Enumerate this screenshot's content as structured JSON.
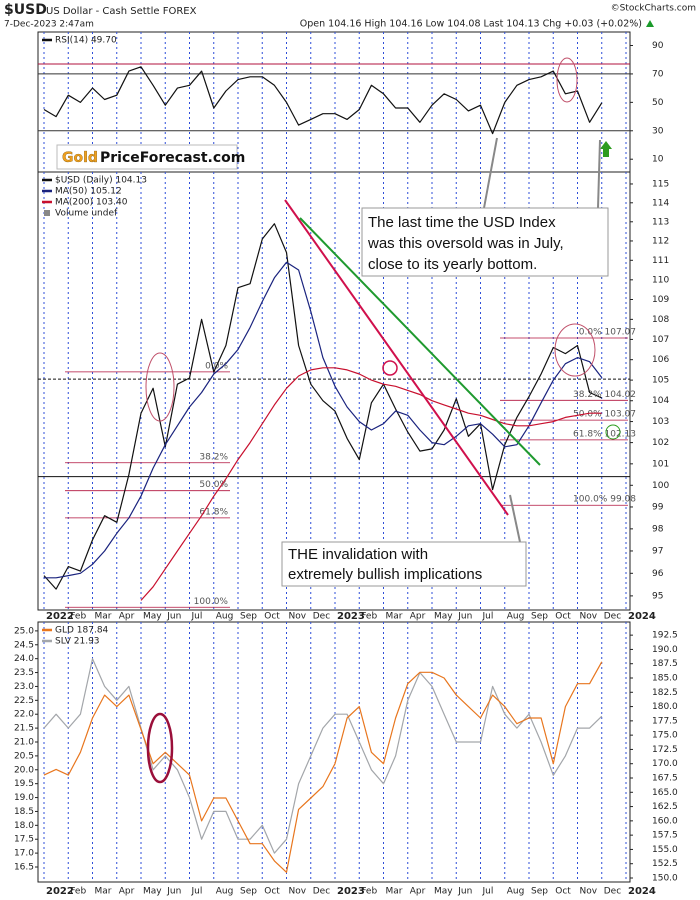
{
  "header": {
    "symbol": "$USD",
    "name": "US Dollar - Cash Settle FOREX",
    "date": "7-Dec-2023 2:47am",
    "quote": "Open 104.16 High 104.16 Low 104.08 Last 104.13 Chg +0.03 (+0.02%)",
    "source": "©StockCharts.com"
  },
  "logo": {
    "gold": "Gold",
    "rest": "PriceForecast.com"
  },
  "annotations": {
    "oversold": [
      "The last time the USD Index",
      "was this oversold was in July,",
      "close to its yearly bottom."
    ],
    "invalidation": [
      "THE invalidation with",
      "extremely bullish implications"
    ]
  },
  "chart_data": [
    {
      "type": "line",
      "y_axis": "right",
      "series": [
        {
          "name": "RSI(14) 49.70",
          "color": "#111111",
          "values": [
            45,
            40,
            55,
            50,
            60,
            52,
            55,
            72,
            75,
            62,
            48,
            60,
            62,
            72,
            46,
            58,
            66,
            68,
            68,
            62,
            50,
            34,
            38,
            42,
            42,
            38,
            45,
            62,
            56,
            46,
            46,
            36,
            48,
            56,
            52,
            44,
            48,
            28,
            50,
            62,
            66,
            68,
            72,
            56,
            58,
            36,
            49.7,
            null,
            null
          ]
        }
      ],
      "ylim": [
        1,
        99.5
      ],
      "yticks": [
        10,
        30,
        50,
        70,
        90
      ],
      "hlines": [
        {
          "value": 77,
          "color": "#b0103c",
          "dash": false
        },
        {
          "value": 70,
          "color": "#333333",
          "dash": false
        },
        {
          "value": 30,
          "color": "#333333",
          "dash": false
        }
      ]
    },
    {
      "type": "line",
      "log": true,
      "y_axis": "right",
      "categories": [
        "2022",
        null,
        "Feb",
        null,
        "Mar",
        null,
        "Apr",
        null,
        "May",
        null,
        "Jun",
        null,
        "Jul",
        null,
        "Aug",
        null,
        "Sep",
        null,
        "Oct",
        null,
        "Nov",
        null,
        "Dec",
        null,
        "2023",
        null,
        "Feb",
        null,
        "Mar",
        null,
        "Apr",
        null,
        "May",
        null,
        "Jun",
        null,
        "Jul",
        null,
        "Aug",
        null,
        "Sep",
        null,
        "Oct",
        null,
        "Nov",
        null,
        "Dec",
        null,
        "2024"
      ],
      "series": [
        {
          "name": "$USD (Daily) 104.13",
          "color": "#111111",
          "values": [
            95.9,
            95.3,
            96.3,
            96.1,
            97.5,
            98.6,
            98.3,
            100.5,
            103.4,
            104.6,
            101.8,
            104.8,
            105.1,
            108.0,
            105.4,
            106.7,
            109.6,
            109.8,
            112.1,
            112.9,
            111.4,
            106.7,
            104.8,
            104.0,
            103.5,
            102.2,
            101.2,
            103.9,
            104.8,
            103.6,
            102.5,
            101.6,
            101.7,
            102.6,
            104.1,
            102.3,
            102.9,
            99.8,
            101.9,
            103.2,
            104.2,
            105.3,
            106.6,
            106.3,
            106.7,
            104.4,
            104.13,
            null,
            null
          ]
        },
        {
          "name": "MA(50) 105.12",
          "color": "#1a237e",
          "values": [
            95.8,
            95.8,
            95.9,
            96.0,
            96.4,
            97.0,
            97.8,
            98.5,
            99.5,
            100.8,
            101.9,
            102.8,
            103.7,
            104.4,
            105.3,
            105.8,
            106.5,
            107.6,
            108.9,
            110.1,
            110.9,
            110.5,
            108.4,
            106.1,
            104.7,
            103.7,
            103.0,
            102.6,
            102.9,
            103.5,
            103.3,
            102.6,
            102.0,
            101.9,
            102.3,
            102.8,
            102.9,
            102.4,
            101.8,
            101.9,
            102.8,
            103.9,
            105.0,
            105.8,
            106.1,
            105.9,
            105.12,
            null,
            null
          ]
        },
        {
          "name": "MA(200) 103.40",
          "color": "#c8102e",
          "values": [
            null,
            null,
            null,
            null,
            null,
            null,
            null,
            null,
            94.8,
            95.4,
            96.2,
            97.0,
            97.8,
            98.6,
            99.5,
            100.3,
            101.2,
            102.0,
            102.9,
            103.8,
            104.6,
            105.2,
            105.5,
            105.6,
            105.6,
            105.5,
            105.3,
            105.0,
            104.8,
            104.7,
            104.5,
            104.3,
            104.0,
            103.8,
            103.6,
            103.4,
            103.3,
            103.1,
            102.9,
            102.8,
            102.8,
            102.9,
            103.0,
            103.2,
            103.3,
            103.4,
            103.4,
            null,
            null
          ]
        }
      ],
      "volume_label": "Volume undef",
      "ylim": [
        94.38,
        115.64
      ],
      "yticks": [
        95,
        96,
        97,
        98,
        99,
        100,
        101,
        102,
        103,
        104,
        105,
        106,
        107,
        108,
        109,
        110,
        111,
        112,
        113,
        114,
        115
      ],
      "hlines": [
        {
          "value": 100.4,
          "color": "#111111",
          "dash": false
        },
        {
          "value": 105.05,
          "color": "#111111",
          "dash": true
        }
      ],
      "fib_left": [
        {
          "value": 105.4,
          "label": "0.0%"
        },
        {
          "value": 101.05,
          "label": "38.2%"
        },
        {
          "value": 99.75,
          "label": "50.0%"
        },
        {
          "value": 98.5,
          "label": "61.8%"
        },
        {
          "value": 94.5,
          "label": "100.0%"
        }
      ],
      "fib_right": [
        {
          "value": 107.07,
          "label": "0.0% 107.07"
        },
        {
          "value": 104.02,
          "label": "38.2% 104.02"
        },
        {
          "value": 103.07,
          "label": "50.0% 103.07"
        },
        {
          "value": 102.13,
          "label": "61.8% 102.13"
        },
        {
          "value": 99.08,
          "label": "100.0% 99.08"
        }
      ]
    },
    {
      "type": "line",
      "y_axis": "left",
      "categories": [
        "2022",
        null,
        "Feb",
        null,
        "Mar",
        null,
        "Apr",
        null,
        "May",
        null,
        "Jun",
        null,
        "Jul",
        null,
        "Aug",
        null,
        "Sep",
        null,
        "Oct",
        null,
        "Nov",
        null,
        "Dec",
        null,
        "2023",
        null,
        "Feb",
        null,
        "Mar",
        null,
        "Apr",
        null,
        "May",
        null,
        "Jun",
        null,
        "Jul",
        null,
        "Aug",
        null,
        "Sep",
        null,
        "Oct",
        null,
        "Nov",
        null,
        "Dec",
        null,
        "2024"
      ],
      "series": [
        {
          "name": "GLD 187.84",
          "color": "#e8761e",
          "axis": "y2",
          "values": [
            168,
            169,
            168,
            172,
            178,
            182,
            180,
            182,
            176,
            170,
            172,
            170,
            168,
            160,
            164,
            164,
            160,
            156,
            156,
            153,
            151,
            162,
            164,
            166,
            170,
            178,
            180,
            172,
            170,
            178,
            184,
            186,
            186,
            185,
            182,
            180,
            178,
            182,
            180,
            177,
            178,
            178,
            170,
            180,
            184,
            184,
            187.84,
            null,
            null
          ]
        },
        {
          "name": "SLV 21.93",
          "color": "#a3a6aa",
          "values": [
            21.5,
            22.0,
            21.5,
            22.0,
            24.0,
            23.0,
            22.5,
            23.0,
            21.5,
            20.0,
            20.5,
            20.0,
            19.0,
            17.5,
            18.5,
            18.5,
            17.5,
            17.5,
            18.0,
            17.0,
            17.5,
            19.5,
            20.5,
            21.5,
            22.0,
            22.0,
            21.0,
            20.0,
            19.5,
            20.5,
            22.5,
            23.5,
            23.0,
            22.0,
            21.0,
            21.0,
            21.0,
            23.0,
            22.0,
            21.5,
            22.0,
            21.0,
            19.8,
            20.5,
            21.5,
            21.5,
            21.93,
            null,
            null
          ]
        }
      ],
      "ylim": [
        15.96,
        25.32
      ],
      "yticks": [
        16.5,
        {
          "value": 17,
          "label": "17.0"
        },
        17.5,
        {
          "value": 18,
          "label": "18.0"
        },
        18.5,
        {
          "value": 19,
          "label": "19.0"
        },
        19.5,
        {
          "value": 20,
          "label": "20.0"
        },
        20.5,
        {
          "value": 21,
          "label": "21.0"
        },
        21.5,
        {
          "value": 22,
          "label": "22.0"
        },
        22.5,
        {
          "value": 23,
          "label": "23.0"
        },
        23.5,
        {
          "value": 24,
          "label": "24.0"
        },
        24.5,
        {
          "value": 25,
          "label": "25.0"
        }
      ],
      "y2lim": [
        149.3,
        194.8
      ],
      "y2ticks": [
        {
          "value": 150,
          "label": "150.0"
        },
        152.5,
        {
          "value": 155,
          "label": "155.0"
        },
        157.5,
        {
          "value": 160,
          "label": "160.0"
        },
        162.5,
        {
          "value": 165,
          "label": "165.0"
        },
        167.5,
        {
          "value": 170,
          "label": "170.0"
        },
        172.5,
        {
          "value": 175,
          "label": "175.0"
        },
        177.5,
        {
          "value": 180,
          "label": "180.0"
        },
        182.5,
        {
          "value": 185,
          "label": "185.0"
        },
        187.5,
        {
          "value": 190,
          "label": "190.0"
        },
        192.5
      ]
    }
  ]
}
